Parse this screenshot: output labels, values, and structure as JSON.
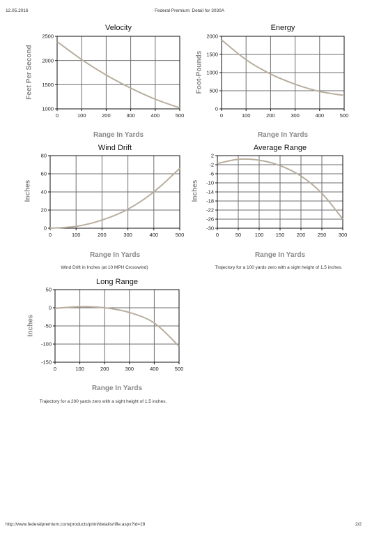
{
  "header": {
    "date": "12.05.2016",
    "title": "Federal Premium: Detail for 3030A"
  },
  "footer": {
    "url": "http://www.federalpremium.com/products/print/details/rifle.aspx?id=28",
    "page": "2/2"
  },
  "captions": {
    "wind_drift": "Wind Drift in Inches (at 10 MPH Crosswind)",
    "average_range": "Trajectory for a 100 yards zero with a sight height of 1.5 inches.",
    "long_range": "Trajectory for a 200 yards zero with a sight height of 1.5 inches."
  },
  "colors": {
    "curve": "#b8ae9e",
    "grid": "#6d6d6d",
    "axis": "#111111"
  },
  "chart_data": [
    {
      "type": "line",
      "title": "Velocity",
      "xlabel": "Range In Yards",
      "ylabel": "Feet Per Second",
      "xlim": [
        0,
        500
      ],
      "ylim": [
        1000,
        2500
      ],
      "xticks": [
        0,
        100,
        200,
        300,
        400,
        500
      ],
      "yticks": [
        1000,
        1500,
        2000,
        2500
      ],
      "grid": true,
      "x": [
        0,
        100,
        200,
        300,
        400,
        500
      ],
      "y": [
        2390,
        2020,
        1700,
        1430,
        1200,
        1020
      ]
    },
    {
      "type": "line",
      "title": "Energy",
      "xlabel": "Range In Yards",
      "ylabel": "Foot-Pounds",
      "xlim": [
        0,
        500
      ],
      "ylim": [
        0,
        2000
      ],
      "xticks": [
        0,
        100,
        200,
        300,
        400,
        500
      ],
      "yticks": [
        0,
        500,
        1000,
        1500,
        2000
      ],
      "grid": true,
      "x": [
        0,
        100,
        200,
        300,
        400,
        500
      ],
      "y": [
        1900,
        1355,
        960,
        680,
        480,
        370
      ]
    },
    {
      "type": "line",
      "title": "Wind Drift",
      "xlabel": "Range In Yards",
      "ylabel": "Inches",
      "xlim": [
        0,
        500
      ],
      "ylim": [
        0,
        80
      ],
      "xticks": [
        0,
        100,
        200,
        300,
        400,
        500
      ],
      "yticks": [
        0,
        20,
        40,
        60,
        80
      ],
      "grid": true,
      "x": [
        0,
        100,
        200,
        300,
        400,
        500
      ],
      "y": [
        0,
        2,
        9,
        21,
        40,
        66
      ]
    },
    {
      "type": "line",
      "title": "Average Range",
      "xlabel": "Range In Yards",
      "ylabel": "Inches",
      "xlim": [
        0,
        300
      ],
      "ylim": [
        -30,
        2
      ],
      "xticks": [
        0,
        50,
        100,
        150,
        200,
        250,
        300
      ],
      "yticks": [
        2,
        -2,
        -6,
        -10,
        -14,
        -18,
        -22,
        -26,
        -30
      ],
      "grid": true,
      "x": [
        0,
        50,
        100,
        150,
        200,
        250,
        300
      ],
      "y": [
        -1.5,
        0.4,
        0,
        -2.4,
        -7,
        -14.6,
        -26
      ]
    },
    {
      "type": "line",
      "title": "Long Range",
      "xlabel": "Range In Yards",
      "ylabel": "Inches",
      "xlim": [
        0,
        500
      ],
      "ylim": [
        -150,
        50
      ],
      "xticks": [
        0,
        100,
        200,
        300,
        400,
        500
      ],
      "yticks": [
        50,
        0,
        -50,
        -100,
        -150
      ],
      "grid": true,
      "x": [
        0,
        100,
        200,
        300,
        400,
        500
      ],
      "y": [
        -1.5,
        3,
        0,
        -13,
        -42,
        -106
      ]
    }
  ]
}
